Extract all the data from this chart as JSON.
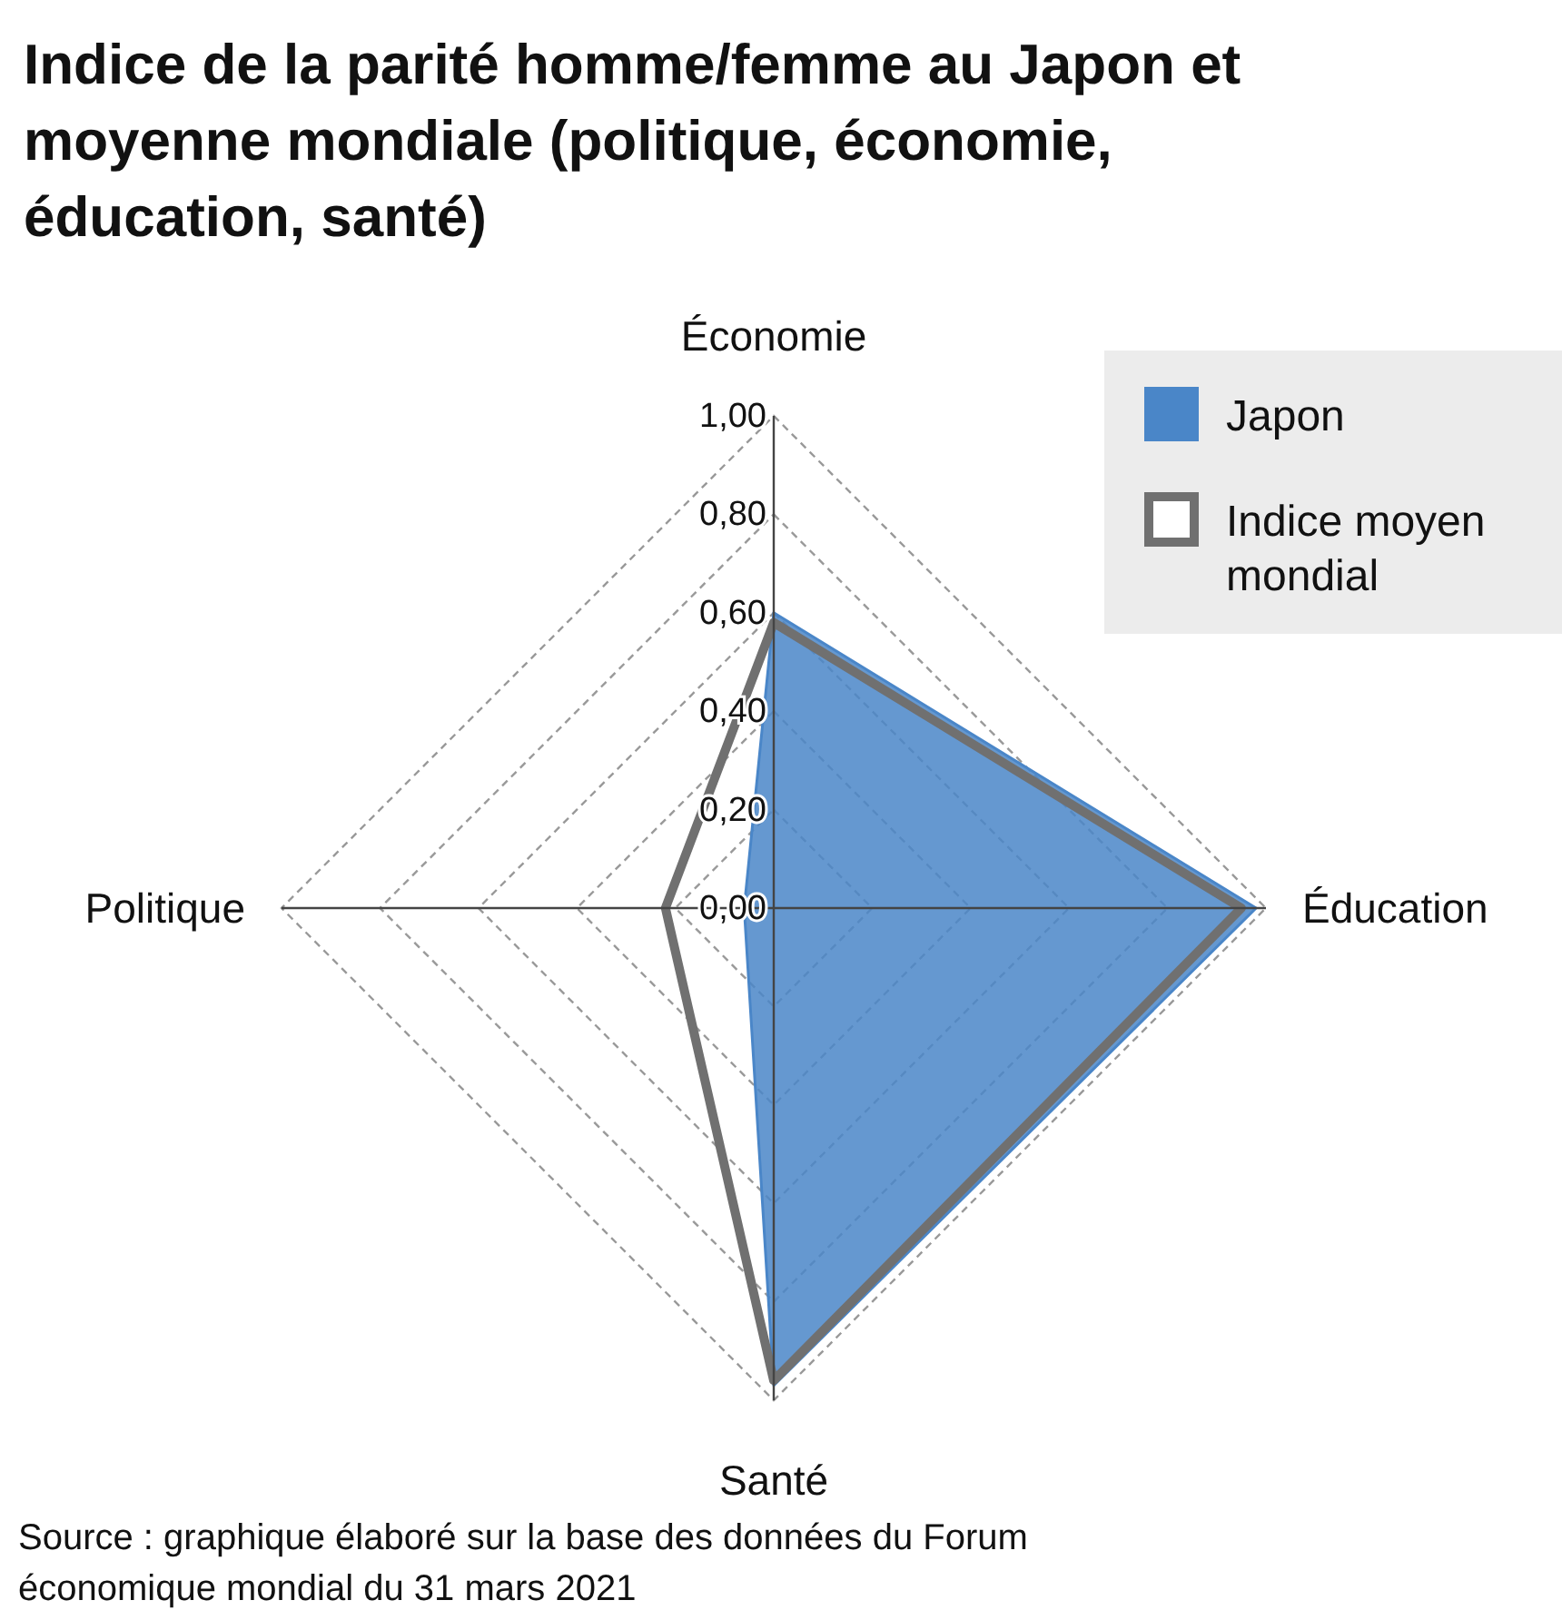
{
  "chart_data": {
    "type": "radar",
    "title": "Indice de la parité homme/femme au Japon et moyenne mondiale (politique, économie, éducation, santé)",
    "categories": [
      "Économie",
      "Éducation",
      "Santé",
      "Politique"
    ],
    "series": [
      {
        "name": "Japon",
        "color": "#4a86c8",
        "values": [
          0.6,
          0.98,
          0.97,
          0.06
        ]
      },
      {
        "name": "Indice moyen mondial",
        "color": "#707070",
        "values": [
          0.58,
          0.95,
          0.96,
          0.22
        ]
      }
    ],
    "ylim": [
      0,
      1
    ],
    "yticks": [
      {
        "value": 0,
        "label": "0,00"
      },
      {
        "value": 0.2,
        "label": "0,20"
      },
      {
        "value": 0.4,
        "label": "0,40"
      },
      {
        "value": 0.6,
        "label": "0,60"
      },
      {
        "value": 0.8,
        "label": "0,80"
      },
      {
        "value": 1,
        "label": "1,00"
      }
    ],
    "grid": true,
    "legend": "top right",
    "annotations": [
      "Source : graphique élaboré sur la base des données du Forum économique mondial du 31 mars 2021"
    ]
  }
}
